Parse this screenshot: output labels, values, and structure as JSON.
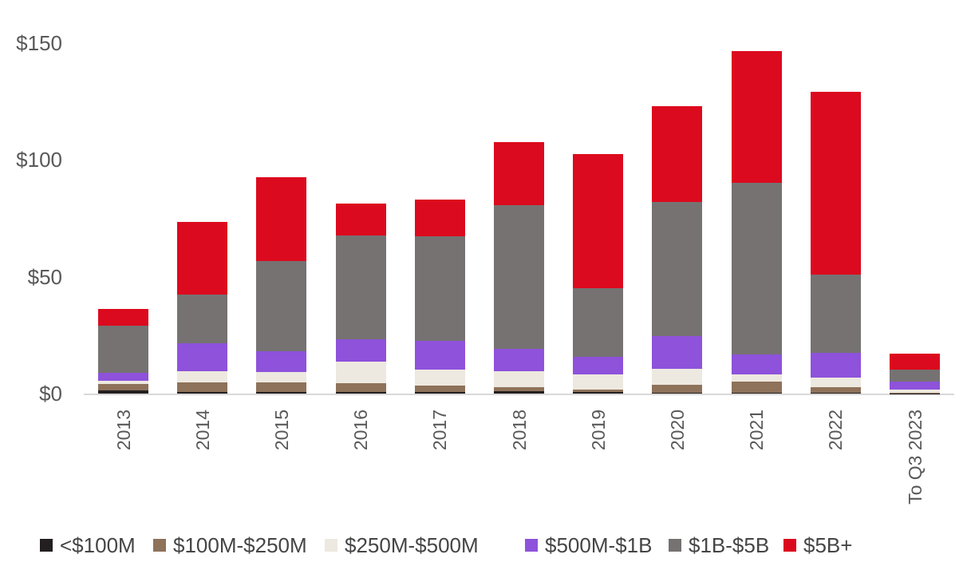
{
  "chart_data": {
    "type": "bar",
    "stacked": true,
    "title": "",
    "xlabel": "",
    "ylabel": "",
    "categories": [
      "2013",
      "2014",
      "2015",
      "2016",
      "2017",
      "2018",
      "2019",
      "2020",
      "2021",
      "2022",
      "To Q3 2023"
    ],
    "series": [
      {
        "name": "<$100M",
        "color": "#231f20",
        "values": [
          1.2,
          0.8,
          0.8,
          0.8,
          0.7,
          0.9,
          0.6,
          0.5,
          0.5,
          0.3,
          0.1
        ]
      },
      {
        "name": "$100M-$250M",
        "color": "#8e725a",
        "values": [
          2.8,
          3.9,
          4.0,
          3.7,
          2.6,
          1.9,
          1.1,
          3.4,
          4.7,
          2.4,
          0.2
        ]
      },
      {
        "name": "$250M-$500M",
        "color": "#ede9e0",
        "values": [
          1.5,
          4.9,
          4.5,
          9.3,
          6.8,
          6.8,
          6.5,
          6.8,
          3.0,
          4.2,
          1.3
        ]
      },
      {
        "name": "$500M-$1B",
        "color": "#8e52db",
        "values": [
          3.5,
          12.0,
          8.8,
          9.5,
          12.5,
          9.4,
          7.5,
          13.9,
          8.4,
          10.4,
          3.4
        ]
      },
      {
        "name": "$1B-$5B",
        "color": "#767272",
        "values": [
          20.0,
          20.7,
          38.7,
          44.3,
          44.6,
          61.7,
          29.3,
          57.3,
          73.7,
          33.6,
          5.1
        ]
      },
      {
        "name": "$5B+",
        "color": "#dc0a1e",
        "values": [
          7.3,
          31.3,
          35.7,
          13.8,
          15.7,
          26.8,
          57.5,
          41.0,
          56.4,
          78.3,
          7.0
        ]
      }
    ],
    "y_ticks": [
      {
        "label": "$0",
        "value": 0
      },
      {
        "label": "$50",
        "value": 50
      },
      {
        "label": "$100",
        "value": 100
      },
      {
        "label": "$150",
        "value": 150
      }
    ],
    "ylim": [
      0,
      150
    ],
    "grid": false,
    "legend_position": "bottom",
    "colors": {
      "axis_line": "#d9d9d9",
      "axis_tick_text": "#595959",
      "legend_text": "#454545",
      "background": "#ffffff"
    }
  }
}
